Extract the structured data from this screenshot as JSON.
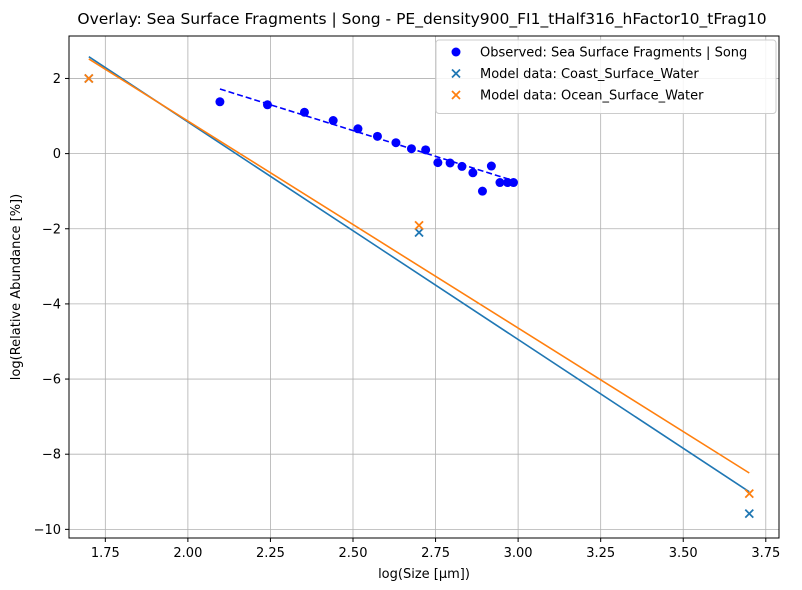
{
  "chart_data": {
    "type": "scatter",
    "title": "Overlay: Sea Surface Fragments | Song - PE_density900_FI1_tHalf316_hFactor10_tFrag10",
    "xlabel": "log(Size [µm])",
    "ylabel": "log(Relative Abundance [%])",
    "xlim": [
      1.64,
      3.79
    ],
    "ylim": [
      -10.23,
      3.13
    ],
    "xticks": [
      1.75,
      2.0,
      2.25,
      2.5,
      2.75,
      3.0,
      3.25,
      3.5,
      3.75
    ],
    "xtick_labels": [
      "1.75",
      "2.00",
      "2.25",
      "2.50",
      "2.75",
      "3.00",
      "3.25",
      "3.50",
      "3.75"
    ],
    "yticks": [
      -10,
      -8,
      -6,
      -4,
      -2,
      0,
      2
    ],
    "ytick_labels": [
      "−10",
      "−8",
      "−6",
      "−4",
      "−2",
      "0",
      "2"
    ],
    "grid": true,
    "legend_position": "top-right",
    "series": [
      {
        "name": "Observed: Sea Surface Fragments | Song",
        "kind": "scatter",
        "marker": "circle",
        "color": "#0000ff",
        "x": [
          2.097,
          2.241,
          2.353,
          2.44,
          2.515,
          2.574,
          2.63,
          2.677,
          2.72,
          2.757,
          2.794,
          2.83,
          2.863,
          2.892,
          2.919,
          2.945,
          2.968,
          2.986
        ],
        "y": [
          1.38,
          1.3,
          1.1,
          0.88,
          0.66,
          0.46,
          0.29,
          0.13,
          0.1,
          -0.24,
          -0.25,
          -0.34,
          -0.51,
          -1.0,
          -0.33,
          -0.77,
          -0.77,
          -0.77
        ]
      },
      {
        "name": "",
        "kind": "line",
        "style": "dashed",
        "color": "#0000ff",
        "x": [
          2.097,
          2.986
        ],
        "y": [
          1.72,
          -0.72
        ]
      },
      {
        "name": "Model data: Coast_Surface_Water",
        "kind": "scatter",
        "marker": "x",
        "color": "#1f77b4",
        "x": [
          1.7,
          2.7,
          3.7
        ],
        "y": [
          2.0,
          -2.1,
          -9.58
        ]
      },
      {
        "name": "",
        "kind": "line",
        "style": "solid",
        "color": "#1f77b4",
        "x": [
          1.7,
          3.7
        ],
        "y": [
          2.58,
          -9.0
        ]
      },
      {
        "name": "Model data: Ocean_Surface_Water",
        "kind": "scatter",
        "marker": "x",
        "color": "#ff7f0e",
        "x": [
          1.7,
          2.7,
          3.7
        ],
        "y": [
          2.0,
          -1.91,
          -9.05
        ]
      },
      {
        "name": "",
        "kind": "line",
        "style": "solid",
        "color": "#ff7f0e",
        "x": [
          1.7,
          3.7
        ],
        "y": [
          2.52,
          -8.5
        ]
      }
    ]
  }
}
